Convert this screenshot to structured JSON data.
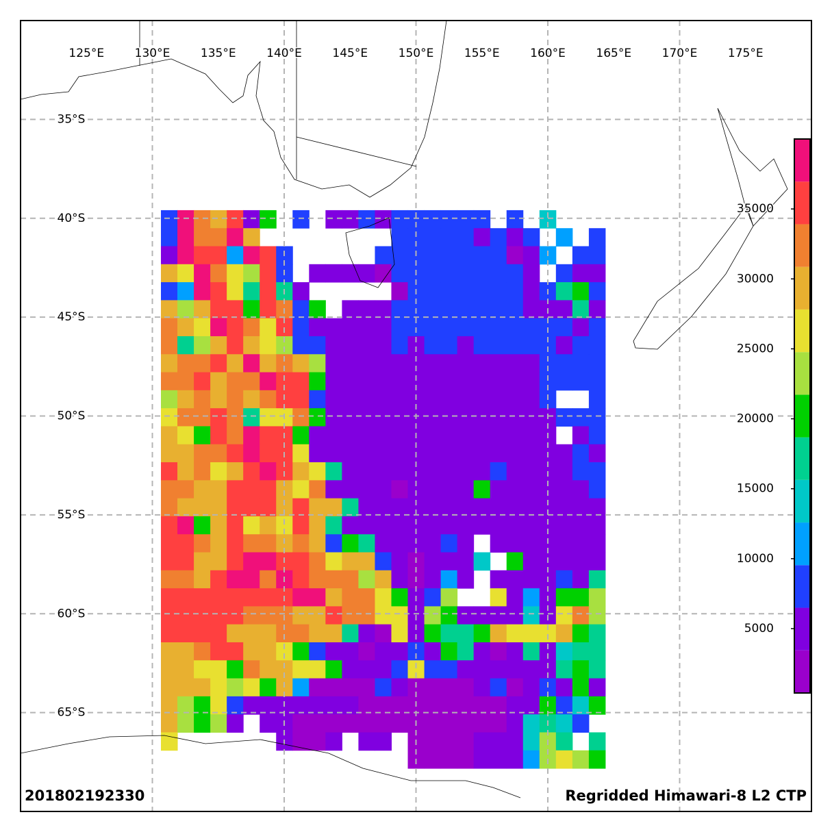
{
  "chart_data": {
    "type": "grid-map",
    "title": "Regridded Himawari-8 L2 CTP",
    "timestamp": "201802192330",
    "xlim": [
      120,
      180
    ],
    "ylim": [
      -30,
      -70
    ],
    "xticks": [
      {
        "value": 125,
        "label": "125°E"
      },
      {
        "value": 130,
        "label": "130°E"
      },
      {
        "value": 135,
        "label": "135°E"
      },
      {
        "value": 140,
        "label": "140°E"
      },
      {
        "value": 145,
        "label": "145°E"
      },
      {
        "value": 150,
        "label": "150°E"
      },
      {
        "value": 155,
        "label": "155°E"
      },
      {
        "value": 160,
        "label": "160°E"
      },
      {
        "value": 165,
        "label": "165°E"
      },
      {
        "value": 170,
        "label": "170°E"
      },
      {
        "value": 175,
        "label": "175°E"
      }
    ],
    "xgrid": [
      130,
      140,
      150,
      160,
      170
    ],
    "yticks": [
      {
        "value": -35,
        "label": "35°S"
      },
      {
        "value": -40,
        "label": "40°S"
      },
      {
        "value": -45,
        "label": "45°S"
      },
      {
        "value": -50,
        "label": "50°S"
      },
      {
        "value": -55,
        "label": "55°S"
      },
      {
        "value": -60,
        "label": "60°S"
      },
      {
        "value": -65,
        "label": "65°S"
      }
    ],
    "grid_lon": [
      130.65,
      164.36
    ],
    "grid_lat": [
      -39.59,
      -67.82
    ],
    "colorbar": {
      "lim": [
        400,
        40000
      ],
      "ticks": [
        5000,
        10000,
        15000,
        20000,
        25000,
        30000,
        35000
      ],
      "colors": [
        "#9a00cc",
        "#8000e0",
        "#2040ff",
        "#00a0ff",
        "#00c8c8",
        "#00d090",
        "#00d000",
        "#a8e040",
        "#e8e030",
        "#e8b030",
        "#f08030",
        "#ff4040",
        "#f0107a"
      ]
    },
    "grid": [
      [
        8000,
        38000,
        32000,
        29000,
        35000,
        5000,
        20000,
        null,
        8000,
        null,
        5000,
        5000,
        8000,
        5000,
        8000,
        8000,
        8000,
        8000,
        8000,
        8000,
        null,
        8000,
        null,
        14000,
        null,
        null,
        null
      ],
      [
        8000,
        38000,
        32000,
        32000,
        38000,
        29000,
        null,
        null,
        null,
        null,
        null,
        null,
        null,
        null,
        8000,
        8000,
        8000,
        8000,
        8000,
        5000,
        8000,
        5000,
        8000,
        null,
        11000,
        null,
        8000
      ],
      [
        5000,
        38000,
        35000,
        35000,
        11000,
        38000,
        35000,
        8000,
        null,
        null,
        null,
        null,
        null,
        8000,
        8000,
        8000,
        8000,
        8000,
        8000,
        8000,
        8000,
        2000,
        5000,
        11000,
        null,
        8000,
        8000
      ],
      [
        29000,
        26000,
        38000,
        32000,
        26000,
        23000,
        35000,
        8000,
        null,
        5000,
        5000,
        5000,
        5000,
        2000,
        8000,
        8000,
        8000,
        8000,
        8000,
        8000,
        8000,
        8000,
        5000,
        null,
        8000,
        5000,
        5000
      ],
      [
        8000,
        11000,
        38000,
        35000,
        26000,
        17000,
        35000,
        17000,
        5000,
        null,
        null,
        null,
        null,
        null,
        2000,
        8000,
        8000,
        8000,
        8000,
        8000,
        8000,
        8000,
        5000,
        8000,
        17000,
        20000,
        8000
      ],
      [
        29000,
        23000,
        29000,
        35000,
        35000,
        20000,
        35000,
        32000,
        8000,
        20000,
        null,
        5000,
        5000,
        5000,
        8000,
        8000,
        8000,
        8000,
        8000,
        8000,
        8000,
        8000,
        5000,
        5000,
        5000,
        17000,
        5000
      ],
      [
        32000,
        29000,
        26000,
        38000,
        35000,
        32000,
        26000,
        35000,
        8000,
        5000,
        5000,
        5000,
        5000,
        5000,
        8000,
        8000,
        8000,
        8000,
        8000,
        8000,
        8000,
        8000,
        8000,
        8000,
        8000,
        5000,
        8000
      ],
      [
        32000,
        17000,
        23000,
        29000,
        35000,
        29000,
        26000,
        23000,
        8000,
        8000,
        5000,
        5000,
        5000,
        5000,
        8000,
        5000,
        8000,
        8000,
        5000,
        8000,
        8000,
        8000,
        8000,
        8000,
        5000,
        8000,
        8000
      ],
      [
        29000,
        32000,
        32000,
        35000,
        29000,
        38000,
        29000,
        32000,
        29000,
        23000,
        5000,
        5000,
        5000,
        5000,
        5000,
        5000,
        5000,
        5000,
        5000,
        5000,
        5000,
        5000,
        5000,
        8000,
        8000,
        8000,
        8000
      ],
      [
        32000,
        32000,
        35000,
        29000,
        32000,
        32000,
        38000,
        35000,
        35000,
        20000,
        5000,
        5000,
        5000,
        5000,
        5000,
        5000,
        5000,
        5000,
        5000,
        5000,
        5000,
        5000,
        5000,
        8000,
        8000,
        8000,
        8000
      ],
      [
        23000,
        29000,
        32000,
        29000,
        32000,
        29000,
        32000,
        35000,
        35000,
        8000,
        5000,
        5000,
        5000,
        5000,
        5000,
        5000,
        5000,
        5000,
        5000,
        5000,
        5000,
        5000,
        5000,
        8000,
        null,
        null,
        8000
      ],
      [
        26000,
        32000,
        32000,
        35000,
        32000,
        17000,
        26000,
        26000,
        32000,
        20000,
        5000,
        5000,
        5000,
        5000,
        5000,
        5000,
        5000,
        5000,
        5000,
        5000,
        5000,
        5000,
        5000,
        5000,
        8000,
        8000,
        8000
      ],
      [
        29000,
        26000,
        20000,
        35000,
        32000,
        38000,
        35000,
        35000,
        20000,
        5000,
        5000,
        5000,
        5000,
        5000,
        5000,
        5000,
        5000,
        5000,
        5000,
        5000,
        5000,
        5000,
        5000,
        5000,
        null,
        5000,
        8000
      ],
      [
        29000,
        29000,
        32000,
        32000,
        35000,
        38000,
        35000,
        35000,
        26000,
        5000,
        5000,
        5000,
        5000,
        5000,
        5000,
        5000,
        5000,
        5000,
        5000,
        5000,
        5000,
        5000,
        5000,
        5000,
        5000,
        8000,
        5000
      ],
      [
        35000,
        29000,
        32000,
        26000,
        29000,
        35000,
        38000,
        35000,
        29000,
        26000,
        17000,
        5000,
        5000,
        5000,
        5000,
        5000,
        5000,
        5000,
        5000,
        5000,
        8000,
        5000,
        5000,
        5000,
        5000,
        8000,
        8000
      ],
      [
        32000,
        32000,
        29000,
        29000,
        35000,
        35000,
        35000,
        29000,
        26000,
        32000,
        5000,
        5000,
        5000,
        5000,
        2000,
        5000,
        5000,
        5000,
        5000,
        20000,
        5000,
        5000,
        5000,
        5000,
        5000,
        5000,
        8000
      ],
      [
        32000,
        29000,
        29000,
        29000,
        35000,
        35000,
        35000,
        29000,
        35000,
        29000,
        29000,
        17000,
        5000,
        5000,
        5000,
        5000,
        5000,
        5000,
        5000,
        5000,
        5000,
        5000,
        5000,
        5000,
        5000,
        5000,
        5000
      ],
      [
        35000,
        38000,
        20000,
        29000,
        35000,
        26000,
        29000,
        26000,
        35000,
        29000,
        17000,
        5000,
        5000,
        5000,
        5000,
        5000,
        5000,
        5000,
        5000,
        5000,
        5000,
        5000,
        5000,
        5000,
        5000,
        5000,
        5000
      ],
      [
        35000,
        35000,
        32000,
        29000,
        35000,
        32000,
        32000,
        29000,
        32000,
        29000,
        8000,
        20000,
        17000,
        5000,
        5000,
        5000,
        5000,
        8000,
        5000,
        null,
        5000,
        5000,
        5000,
        5000,
        5000,
        5000,
        5000
      ],
      [
        35000,
        35000,
        29000,
        29000,
        35000,
        38000,
        38000,
        35000,
        35000,
        32000,
        26000,
        29000,
        29000,
        8000,
        5000,
        2000,
        5000,
        5000,
        5000,
        14000,
        null,
        20000,
        5000,
        5000,
        5000,
        5000,
        5000
      ],
      [
        32000,
        32000,
        29000,
        35000,
        38000,
        38000,
        32000,
        38000,
        35000,
        32000,
        32000,
        32000,
        23000,
        29000,
        5000,
        2000,
        5000,
        11000,
        5000,
        null,
        5000,
        5000,
        5000,
        5000,
        8000,
        5000,
        17000
      ],
      [
        35000,
        35000,
        35000,
        35000,
        35000,
        35000,
        35000,
        35000,
        38000,
        38000,
        29000,
        32000,
        32000,
        26000,
        20000,
        5000,
        8000,
        23000,
        null,
        null,
        26000,
        5000,
        11000,
        5000,
        20000,
        20000,
        23000
      ],
      [
        35000,
        35000,
        35000,
        35000,
        35000,
        32000,
        32000,
        32000,
        29000,
        29000,
        35000,
        32000,
        32000,
        26000,
        26000,
        5000,
        23000,
        20000,
        5000,
        5000,
        5000,
        5000,
        14000,
        5000,
        26000,
        32000,
        23000
      ],
      [
        35000,
        35000,
        35000,
        35000,
        29000,
        29000,
        29000,
        32000,
        32000,
        29000,
        29000,
        17000,
        5000,
        2000,
        26000,
        5000,
        20000,
        17000,
        17000,
        20000,
        29000,
        26000,
        26000,
        26000,
        29000,
        20000,
        17000
      ],
      [
        29000,
        29000,
        32000,
        35000,
        35000,
        29000,
        29000,
        26000,
        20000,
        8000,
        5000,
        5000,
        2000,
        5000,
        5000,
        8000,
        5000,
        20000,
        17000,
        5000,
        2000,
        5000,
        17000,
        5000,
        14000,
        17000,
        17000
      ],
      [
        29000,
        29000,
        26000,
        26000,
        20000,
        32000,
        29000,
        29000,
        26000,
        26000,
        20000,
        5000,
        5000,
        5000,
        8000,
        26000,
        8000,
        8000,
        5000,
        5000,
        5000,
        5000,
        5000,
        5000,
        17000,
        20000,
        17000
      ],
      [
        29000,
        29000,
        29000,
        26000,
        23000,
        26000,
        20000,
        29000,
        11000,
        2000,
        2000,
        2000,
        2000,
        8000,
        5000,
        2000,
        2000,
        2000,
        2000,
        5000,
        8000,
        2000,
        5000,
        8000,
        5000,
        20000,
        5000
      ],
      [
        29000,
        23000,
        20000,
        26000,
        8000,
        5000,
        5000,
        5000,
        5000,
        5000,
        5000,
        5000,
        2000,
        2000,
        2000,
        2000,
        2000,
        2000,
        2000,
        2000,
        2000,
        5000,
        5000,
        20000,
        8000,
        14000,
        20000
      ],
      [
        29000,
        23000,
        20000,
        23000,
        5000,
        null,
        5000,
        5000,
        2000,
        2000,
        2000,
        2000,
        2000,
        2000,
        2000,
        2000,
        2000,
        2000,
        2000,
        2000,
        2000,
        5000,
        14000,
        17000,
        14000,
        8000,
        null
      ],
      [
        26000,
        null,
        null,
        null,
        null,
        null,
        null,
        5000,
        2000,
        2000,
        5000,
        null,
        5000,
        5000,
        null,
        2000,
        2000,
        2000,
        2000,
        5000,
        5000,
        5000,
        14000,
        23000,
        17000,
        null,
        17000
      ],
      [
        null,
        null,
        null,
        null,
        null,
        null,
        null,
        null,
        null,
        null,
        null,
        null,
        null,
        null,
        null,
        2000,
        2000,
        2000,
        2000,
        5000,
        5000,
        5000,
        11000,
        23000,
        26000,
        23000,
        20000
      ]
    ]
  }
}
